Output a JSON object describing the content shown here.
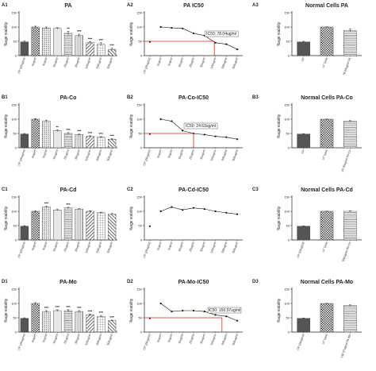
{
  "chart_data": [
    {
      "id": "A1",
      "type": "bar",
      "title": "PA",
      "ylabel": "%age viability",
      "ylim": [
        0,
        150
      ],
      "yticks": [
        0,
        50,
        100,
        150
      ],
      "categories": [
        "CP (20ug/ml)",
        "0ug/ml",
        "5ug/ml",
        "10ug/ml",
        "25ug/ml",
        "50ug/ml",
        "100ug/ml",
        "200ug/ml",
        "500ug/ml"
      ],
      "values": [
        48,
        100,
        97,
        95,
        78,
        70,
        45,
        40,
        22
      ],
      "errors": [
        3,
        3,
        3,
        3,
        7,
        5,
        4,
        5,
        4
      ],
      "significance": [
        "",
        "",
        "",
        "",
        "**",
        "***",
        "***",
        "***",
        "***"
      ]
    },
    {
      "id": "A2",
      "type": "line",
      "title": "PA IC50",
      "ylabel": "%age viability",
      "ylim": [
        0,
        150
      ],
      "yticks": [
        0,
        50,
        100,
        150
      ],
      "categories": [
        "CP (20ug/ml)",
        "0ug/ml",
        "5ug/ml",
        "10ug/ml",
        "25ug/ml",
        "50ug/ml",
        "100ug/ml",
        "200ug/ml",
        "500ug/ml"
      ],
      "values": [
        48,
        100,
        97,
        95,
        78,
        70,
        45,
        40,
        22
      ],
      "ic50_label": "IC50: 78.04ug/ml",
      "ic50_y": 50,
      "ic50_x_index": 5.9
    },
    {
      "id": "A3",
      "type": "bar",
      "title": "Normal Cells PA",
      "ylabel": "%age viability",
      "ylim": [
        0,
        150
      ],
      "yticks": [
        0,
        50,
        100,
        150
      ],
      "categories": [
        "CP",
        "UT Cells",
        "78.04ug/ml PA"
      ],
      "values": [
        48,
        100,
        88
      ],
      "errors": [
        2,
        1,
        5
      ]
    },
    {
      "id": "B1",
      "type": "bar",
      "title": "PA-Co",
      "ylabel": "%age viability",
      "ylim": [
        0,
        150
      ],
      "yticks": [
        0,
        50,
        100,
        150
      ],
      "categories": [
        "CP (20ug/ml)",
        "0ug/ml",
        "5ug/ml",
        "10ug/ml",
        "25ug/ml",
        "50ug/ml",
        "100ug/ml",
        "200ug/ml",
        "500ug/ml"
      ],
      "values": [
        48,
        100,
        93,
        60,
        50,
        46,
        40,
        37,
        30
      ],
      "errors": [
        2,
        2,
        3,
        3,
        3,
        2,
        2,
        2,
        2
      ],
      "significance": [
        "",
        "",
        "",
        "**",
        "***",
        "***",
        "***",
        "***",
        "***"
      ]
    },
    {
      "id": "B2",
      "type": "line",
      "title": "PA-Co-IC50",
      "ylabel": "%age viability",
      "ylim": [
        0,
        150
      ],
      "yticks": [
        0,
        50,
        100,
        150
      ],
      "categories": [
        "CP (20ug/ml)",
        "0ug/ml",
        "5ug/ml",
        "10ug/ml",
        "25ug/ml",
        "50ug/ml",
        "100ug/ml",
        "200ug/ml",
        "500ug/ml"
      ],
      "values": [
        48,
        100,
        93,
        60,
        50,
        46,
        40,
        37,
        30
      ],
      "ic50_label": "IC50: 24.63ug/ml",
      "ic50_y": 50,
      "ic50_x_index": 4.0
    },
    {
      "id": "B3",
      "type": "bar",
      "title": "Normal Cells PA-Co",
      "ylabel": "%age viability",
      "ylim": [
        0,
        150
      ],
      "yticks": [
        0,
        50,
        100,
        150
      ],
      "categories": [
        "CP",
        "UT Cells",
        "24.63ug/ml PA-Co"
      ],
      "values": [
        48,
        100,
        93
      ],
      "errors": [
        1,
        1,
        2
      ]
    },
    {
      "id": "C1",
      "type": "bar",
      "title": "PA-Cd",
      "ylabel": "%age viability",
      "ylim": [
        0,
        150
      ],
      "yticks": [
        0,
        50,
        100,
        150
      ],
      "categories": [
        "CP (20ug/ml)",
        "0ug/ml",
        "5ug/ml",
        "10ug/ml",
        "25ug/ml",
        "50ug/ml",
        "100ug/ml",
        "200ug/ml",
        "500ug/ml"
      ],
      "values": [
        48,
        100,
        115,
        105,
        112,
        108,
        100,
        95,
        90
      ],
      "errors": [
        2,
        2,
        3,
        3,
        2,
        2,
        2,
        2,
        2
      ],
      "significance": [
        "",
        "",
        "***",
        "",
        "***",
        "",
        "",
        "",
        ""
      ]
    },
    {
      "id": "C2",
      "type": "line",
      "title": "PA-Cd-IC50",
      "ylabel": "%age viability",
      "ylim": [
        0,
        150
      ],
      "yticks": [
        0,
        50,
        100,
        150
      ],
      "categories": [
        "CP (20ug/ml)",
        "0ug/ml",
        "5ug/ml",
        "10ug/ml",
        "25ug/ml",
        "50ug/ml",
        "100ug/ml",
        "200ug/ml",
        "500ug/ml"
      ],
      "values": [
        48,
        100,
        115,
        105,
        112,
        108,
        100,
        95,
        90
      ]
    },
    {
      "id": "C3",
      "type": "bar",
      "title": "Normal Cells PA-Cd",
      "ylabel": "%age viability",
      "ylim": [
        0,
        150
      ],
      "yticks": [
        0,
        50,
        100,
        150
      ],
      "categories": [
        "CP (20ug/ml)",
        "UT Cells",
        "500ug/ml PA-Cd"
      ],
      "values": [
        48,
        100,
        100
      ],
      "errors": [
        1,
        1,
        2
      ]
    },
    {
      "id": "D1",
      "type": "bar",
      "title": "PA-Mo",
      "ylabel": "%age viability",
      "ylim": [
        0,
        150
      ],
      "yticks": [
        0,
        50,
        100,
        150
      ],
      "categories": [
        "CP (20ug/ml)",
        "0ug/ml",
        "5ug/ml",
        "10ug/ml",
        "25ug/ml",
        "50ug/ml",
        "100ug/ml",
        "200ug/ml",
        "500ug/ml"
      ],
      "values": [
        48,
        100,
        72,
        75,
        75,
        72,
        60,
        55,
        40
      ],
      "errors": [
        2,
        3,
        3,
        3,
        3,
        3,
        3,
        3,
        2
      ],
      "significance": [
        "",
        "",
        "***",
        "***",
        "***",
        "***",
        "***",
        "***",
        "***"
      ]
    },
    {
      "id": "D2",
      "type": "line",
      "title": "PA-Mo-IC50",
      "ylabel": "%age viability",
      "ylim": [
        0,
        150
      ],
      "yticks": [
        0,
        50,
        100,
        150
      ],
      "categories": [
        "CP (20ug/ml)",
        "0ug/ml",
        "5ug/ml",
        "10ug/ml",
        "25ug/ml",
        "50ug/ml",
        "100ug/ml",
        "200ug/ml",
        "500ug/ml"
      ],
      "values": [
        48,
        100,
        72,
        75,
        75,
        72,
        60,
        55,
        40
      ],
      "ic50_label": "IC50: 150.57ug/ml",
      "ic50_y": 50,
      "ic50_x_index": 6.6
    },
    {
      "id": "D3",
      "type": "bar",
      "title": "Normal Cells PA-Mo",
      "ylabel": "%age viability",
      "ylim": [
        0,
        150
      ],
      "yticks": [
        0,
        50,
        100,
        150
      ],
      "categories": [
        "CP (20ug/ml)",
        "UT Cells",
        "150.57ug/ml PA-Mo"
      ],
      "values": [
        48,
        100,
        93
      ],
      "errors": [
        1,
        1,
        2
      ]
    }
  ],
  "colors": {
    "ic50_line": "#e02424",
    "line": "#111111",
    "axis": "#222222",
    "bar_dark": "#555555",
    "bar_light": "#e6e6e6"
  }
}
